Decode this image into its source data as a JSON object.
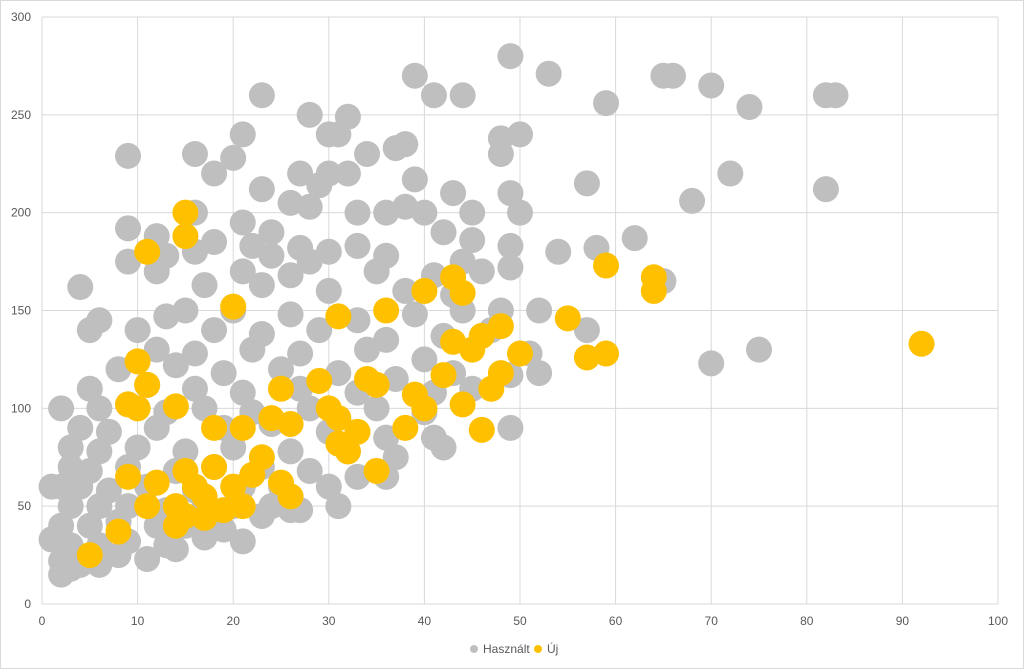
{
  "chart_data": {
    "type": "scatter",
    "xlim": [
      0,
      100
    ],
    "ylim": [
      0,
      300
    ],
    "x_ticks": [
      "0",
      "10",
      "20",
      "30",
      "40",
      "50",
      "60",
      "70",
      "80",
      "90",
      "100"
    ],
    "y_ticks": [
      "0",
      "50",
      "100",
      "150",
      "200",
      "250",
      "300"
    ],
    "grid": true,
    "legend_position": "bottom",
    "series": [
      {
        "name": "Használt",
        "color": "#bfbfbf",
        "points": [
          [
            49,
            280
          ],
          [
            53,
            271
          ],
          [
            39,
            270
          ],
          [
            65,
            270
          ],
          [
            66,
            270
          ],
          [
            70,
            265
          ],
          [
            23,
            260
          ],
          [
            41,
            260
          ],
          [
            44,
            260
          ],
          [
            82,
            260
          ],
          [
            83,
            260
          ],
          [
            59,
            256
          ],
          [
            74,
            254
          ],
          [
            28,
            250
          ],
          [
            32,
            249
          ],
          [
            21,
            240
          ],
          [
            30,
            240
          ],
          [
            31,
            240
          ],
          [
            48,
            238
          ],
          [
            50,
            240
          ],
          [
            38,
            235
          ],
          [
            37,
            233
          ],
          [
            9,
            229
          ],
          [
            16,
            230
          ],
          [
            20,
            228
          ],
          [
            34,
            230
          ],
          [
            48,
            230
          ],
          [
            72,
            220
          ],
          [
            18,
            220
          ],
          [
            27,
            220
          ],
          [
            30,
            220
          ],
          [
            32,
            220
          ],
          [
            39,
            217
          ],
          [
            57,
            215
          ],
          [
            82,
            212
          ],
          [
            23,
            212
          ],
          [
            29,
            214
          ],
          [
            43,
            210
          ],
          [
            49,
            210
          ],
          [
            68,
            206
          ],
          [
            26,
            205
          ],
          [
            28,
            203
          ],
          [
            38,
            203
          ],
          [
            40,
            200
          ],
          [
            33,
            200
          ],
          [
            36,
            200
          ],
          [
            45,
            200
          ],
          [
            50,
            200
          ],
          [
            16,
            200
          ],
          [
            9,
            192
          ],
          [
            12,
            188
          ],
          [
            21,
            195
          ],
          [
            24,
            190
          ],
          [
            42,
            190
          ],
          [
            62,
            187
          ],
          [
            18,
            185
          ],
          [
            22,
            183
          ],
          [
            27,
            182
          ],
          [
            30,
            180
          ],
          [
            33,
            183
          ],
          [
            45,
            186
          ],
          [
            49,
            183
          ],
          [
            54,
            180
          ],
          [
            58,
            182
          ],
          [
            13,
            178
          ],
          [
            16,
            180
          ],
          [
            24,
            178
          ],
          [
            28,
            175
          ],
          [
            36,
            178
          ],
          [
            44,
            175
          ],
          [
            9,
            175
          ],
          [
            12,
            170
          ],
          [
            21,
            170
          ],
          [
            26,
            168
          ],
          [
            35,
            170
          ],
          [
            41,
            168
          ],
          [
            46,
            170
          ],
          [
            49,
            172
          ],
          [
            65,
            165
          ],
          [
            4,
            162
          ],
          [
            17,
            163
          ],
          [
            23,
            163
          ],
          [
            30,
            160
          ],
          [
            38,
            160
          ],
          [
            43,
            158
          ],
          [
            48,
            150
          ],
          [
            52,
            150
          ],
          [
            6,
            145
          ],
          [
            5,
            140
          ],
          [
            13,
            147
          ],
          [
            15,
            150
          ],
          [
            20,
            150
          ],
          [
            26,
            148
          ],
          [
            33,
            145
          ],
          [
            39,
            148
          ],
          [
            44,
            150
          ],
          [
            57,
            140
          ],
          [
            10,
            140
          ],
          [
            18,
            140
          ],
          [
            23,
            138
          ],
          [
            29,
            140
          ],
          [
            36,
            135
          ],
          [
            42,
            137
          ],
          [
            47,
            140
          ],
          [
            12,
            130
          ],
          [
            16,
            128
          ],
          [
            22,
            130
          ],
          [
            27,
            128
          ],
          [
            34,
            130
          ],
          [
            40,
            125
          ],
          [
            51,
            128
          ],
          [
            75,
            130
          ],
          [
            70,
            123
          ],
          [
            8,
            120
          ],
          [
            14,
            122
          ],
          [
            19,
            118
          ],
          [
            25,
            120
          ],
          [
            31,
            118
          ],
          [
            37,
            115
          ],
          [
            43,
            118
          ],
          [
            49,
            117
          ],
          [
            52,
            118
          ],
          [
            5,
            110
          ],
          [
            11,
            112
          ],
          [
            16,
            110
          ],
          [
            21,
            108
          ],
          [
            27,
            110
          ],
          [
            33,
            108
          ],
          [
            41,
            108
          ],
          [
            45,
            110
          ],
          [
            2,
            100
          ],
          [
            6,
            100
          ],
          [
            9,
            102
          ],
          [
            13,
            98
          ],
          [
            17,
            100
          ],
          [
            22,
            98
          ],
          [
            28,
            100
          ],
          [
            35,
            100
          ],
          [
            40,
            98
          ],
          [
            4,
            90
          ],
          [
            7,
            88
          ],
          [
            12,
            90
          ],
          [
            19,
            90
          ],
          [
            24,
            92
          ],
          [
            30,
            88
          ],
          [
            36,
            85
          ],
          [
            41,
            85
          ],
          [
            49,
            90
          ],
          [
            42,
            80
          ],
          [
            3,
            80
          ],
          [
            6,
            78
          ],
          [
            10,
            80
          ],
          [
            15,
            78
          ],
          [
            20,
            80
          ],
          [
            26,
            78
          ],
          [
            32,
            78
          ],
          [
            37,
            75
          ],
          [
            3,
            70
          ],
          [
            5,
            68
          ],
          [
            9,
            70
          ],
          [
            14,
            68
          ],
          [
            18,
            70
          ],
          [
            23,
            70
          ],
          [
            28,
            68
          ],
          [
            33,
            65
          ],
          [
            36,
            65
          ],
          [
            2,
            60
          ],
          [
            4,
            60
          ],
          [
            7,
            58
          ],
          [
            11,
            60
          ],
          [
            16,
            58
          ],
          [
            21,
            60
          ],
          [
            25,
            60
          ],
          [
            30,
            60
          ],
          [
            1,
            60
          ],
          [
            3,
            50
          ],
          [
            6,
            50
          ],
          [
            9,
            50
          ],
          [
            13,
            48
          ],
          [
            17,
            50
          ],
          [
            20,
            50
          ],
          [
            24,
            50
          ],
          [
            27,
            48
          ],
          [
            31,
            50
          ],
          [
            2,
            40
          ],
          [
            5,
            40
          ],
          [
            8,
            42
          ],
          [
            12,
            40
          ],
          [
            15,
            40
          ],
          [
            19,
            38
          ],
          [
            23,
            45
          ],
          [
            26,
            48
          ],
          [
            1,
            33
          ],
          [
            3,
            30
          ],
          [
            6,
            30
          ],
          [
            9,
            32
          ],
          [
            13,
            30
          ],
          [
            17,
            34
          ],
          [
            21,
            32
          ],
          [
            2,
            22
          ],
          [
            4,
            20
          ],
          [
            6,
            20
          ],
          [
            8,
            25
          ],
          [
            11,
            23
          ],
          [
            14,
            28
          ],
          [
            2,
            15
          ],
          [
            3,
            18
          ]
        ]
      },
      {
        "name": "Új",
        "color": "#ffc000",
        "points": [
          [
            15,
            200
          ],
          [
            15,
            188
          ],
          [
            11,
            180
          ],
          [
            59,
            173
          ],
          [
            43,
            167
          ],
          [
            64,
            167
          ],
          [
            64,
            160
          ],
          [
            40,
            160
          ],
          [
            44,
            159
          ],
          [
            20,
            152
          ],
          [
            36,
            150
          ],
          [
            31,
            147
          ],
          [
            55,
            146
          ],
          [
            48,
            142
          ],
          [
            46,
            137
          ],
          [
            43,
            134
          ],
          [
            45,
            130
          ],
          [
            10,
            124
          ],
          [
            50,
            128
          ],
          [
            57,
            126
          ],
          [
            59,
            128
          ],
          [
            92,
            133
          ],
          [
            42,
            117
          ],
          [
            48,
            118
          ],
          [
            47,
            110
          ],
          [
            34,
            115
          ],
          [
            35,
            112
          ],
          [
            29,
            114
          ],
          [
            11,
            112
          ],
          [
            25,
            110
          ],
          [
            9,
            102
          ],
          [
            10,
            100
          ],
          [
            14,
            101
          ],
          [
            44,
            102
          ],
          [
            39,
            107
          ],
          [
            40,
            100
          ],
          [
            30,
            100
          ],
          [
            31,
            95
          ],
          [
            24,
            95
          ],
          [
            26,
            92
          ],
          [
            18,
            90
          ],
          [
            21,
            90
          ],
          [
            38,
            90
          ],
          [
            46,
            89
          ],
          [
            33,
            88
          ],
          [
            31,
            82
          ],
          [
            32,
            78
          ],
          [
            35,
            68
          ],
          [
            9,
            65
          ],
          [
            23,
            75
          ],
          [
            18,
            70
          ],
          [
            15,
            68
          ],
          [
            22,
            66
          ],
          [
            20,
            60
          ],
          [
            25,
            62
          ],
          [
            12,
            62
          ],
          [
            16,
            60
          ],
          [
            17,
            55
          ],
          [
            26,
            55
          ],
          [
            19,
            48
          ],
          [
            21,
            50
          ],
          [
            14,
            50
          ],
          [
            11,
            50
          ],
          [
            15,
            45
          ],
          [
            17,
            44
          ],
          [
            14,
            40
          ],
          [
            8,
            37
          ],
          [
            5,
            25
          ]
        ]
      }
    ]
  }
}
